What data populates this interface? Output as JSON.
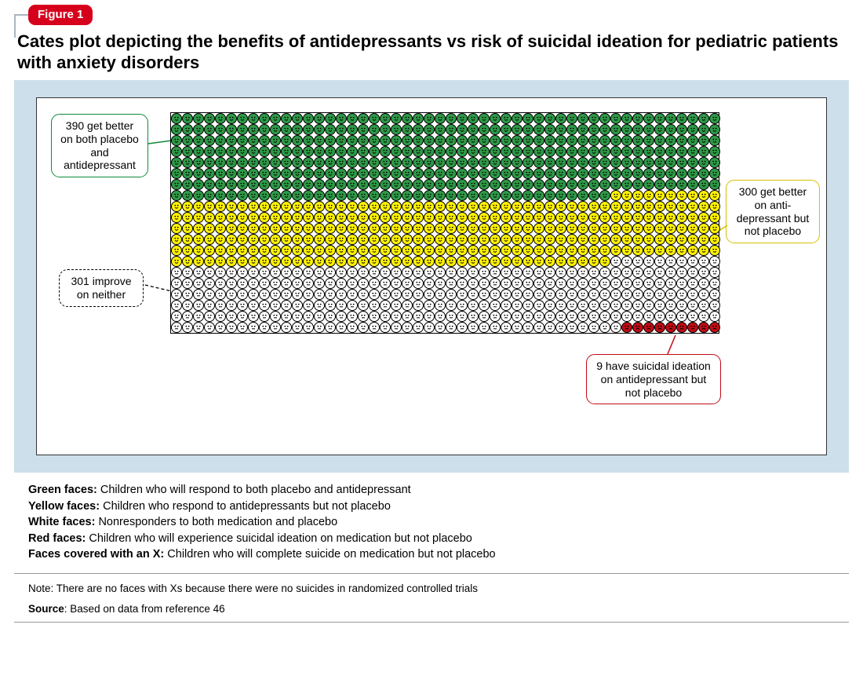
{
  "figure": {
    "badge": "Figure 1",
    "title": "Cates plot depicting the benefits of antidepressants vs risk of suicidal ideation for pediatric patients with anxiety disorders"
  },
  "plot": {
    "type": "icon-array",
    "grid_cols": 50,
    "grid_rows": 20,
    "total": 1000,
    "categories": [
      {
        "key": "green",
        "count": 390,
        "fill": "#2e9a47",
        "stroke": "#000000",
        "mood": "happy",
        "label": "Green faces",
        "desc": "Children who will respond to both placebo and antidepressant"
      },
      {
        "key": "yellow",
        "count": 300,
        "fill": "#fff200",
        "stroke": "#000000",
        "mood": "happy",
        "label": "Yellow faces",
        "desc": "Children who respond to antidepressants but not placebo"
      },
      {
        "key": "white",
        "count": 301,
        "fill": "#ffffff",
        "stroke": "#000000",
        "mood": "neutral",
        "label": "White faces",
        "desc": "Nonresponders to both medication and placebo"
      },
      {
        "key": "red",
        "count": 9,
        "fill": "#c00c14",
        "stroke": "#000000",
        "mood": "sad",
        "label": "Red faces",
        "desc": "Children who will experience suicidal ideation on medication but not placebo"
      },
      {
        "key": "x",
        "count": 0,
        "fill": "#ffffff",
        "stroke": "#000000",
        "mood": "x",
        "label": "Faces covered with an X",
        "desc": "Children who will complete suicide on medication but not placebo"
      }
    ],
    "panel_bg": "#cddfeb",
    "inner_bg": "#ffffff"
  },
  "callouts": {
    "green": "390 get better on both placebo and antidepressant",
    "yellow": "300 get better on anti-​depressant but not placebo",
    "white": "301 improve on neither",
    "red": "9 have suicidal ideation on antidepressant but not placebo"
  },
  "note": "Note: There are no faces with Xs because there were no suicides in randomized controlled trials",
  "source_label": "Source",
  "source_text": "Based on data from reference 46"
}
